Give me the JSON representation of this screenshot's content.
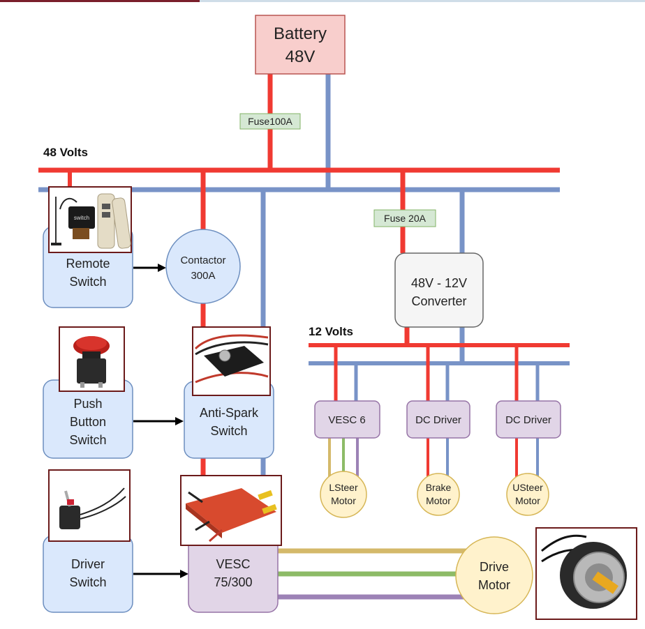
{
  "buses": {
    "high": {
      "label": "48 Volts"
    },
    "low": {
      "label": "12 Volts"
    }
  },
  "battery": {
    "line1": "Battery",
    "line2": "48V"
  },
  "fuses": {
    "main": "Fuse100A",
    "converter": "Fuse 20A"
  },
  "converter": {
    "line1": "48V - 12V",
    "line2": "Converter"
  },
  "contactor": {
    "line1": "Contactor",
    "line2": "300A"
  },
  "remote_switch": {
    "line1": "Remote",
    "line2": "Switch"
  },
  "push_button_switch": {
    "line1": "Push",
    "line2": "Button",
    "line3": "Switch"
  },
  "anti_spark_switch": {
    "line1": "Anti-Spark",
    "line2": "Switch"
  },
  "driver_switch": {
    "line1": "Driver",
    "line2": "Switch"
  },
  "vesc_main": {
    "line1": "VESC",
    "line2": "75/300"
  },
  "drive_motor": {
    "line1": "Drive",
    "line2": "Motor"
  },
  "vesc6": {
    "label": "VESC 6"
  },
  "dc_driver_1": {
    "label": "DC Driver"
  },
  "dc_driver_2": {
    "label": "DC Driver"
  },
  "lsteer_motor": {
    "line1": "LSteer",
    "line2": "Motor"
  },
  "brake_motor": {
    "line1": "Brake",
    "line2": "Motor"
  },
  "usteer_motor": {
    "line1": "USteer",
    "line2": "Motor"
  },
  "photos": {
    "remote_photo_text": "switch"
  },
  "colors": {
    "positive": "#f03a32",
    "negative": "#7893c7",
    "phase_a": "#d4b96a",
    "phase_b": "#8dbb67",
    "phase_c": "#9c82b6",
    "battery_fill": "#f8cecc",
    "fuse_fill": "#d5e8d4",
    "blue_fill": "#dae8fc",
    "purple_fill": "#e1d5e7",
    "motor_fill": "#fff2cc",
    "photo_border": "#6b1a1a"
  }
}
